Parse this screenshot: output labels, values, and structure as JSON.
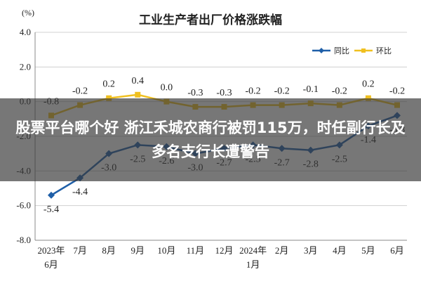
{
  "chart_data": {
    "type": "line",
    "title": "工业生产者出厂价格涨跌幅",
    "unit_label": "(%)",
    "categories": [
      [
        "2023年",
        "6月"
      ],
      [
        "7月"
      ],
      [
        "8月"
      ],
      [
        "9月"
      ],
      [
        "10月"
      ],
      [
        "11月"
      ],
      [
        "12月"
      ],
      [
        "2024年",
        "1月"
      ],
      [
        "2月"
      ],
      [
        "3月"
      ],
      [
        "4月"
      ],
      [
        "5月"
      ],
      [
        "6月"
      ]
    ],
    "y_ticks": [
      "4.0",
      "2.0",
      "0.0",
      "-2.0",
      "-4.0",
      "-6.0",
      "-8.0"
    ],
    "ylim": [
      -8,
      4
    ],
    "grid": true,
    "legend_position": "top-right",
    "series": [
      {
        "name": "同比",
        "color": "#1f5fa8",
        "values": [
          -5.4,
          -4.4,
          -3.0,
          -2.5,
          -2.6,
          -3.0,
          -2.7,
          -2.5,
          -2.7,
          -2.8,
          -2.5,
          -1.4,
          -0.8
        ],
        "labels": [
          "-5.4",
          "-4.4",
          "-3.0",
          "-2.5",
          "-2.6",
          "-3.0",
          "-2.7",
          "-2.5",
          "-2.7",
          "-2.8",
          "-2.5",
          "-1.4",
          "-0.8"
        ]
      },
      {
        "name": "环比",
        "color": "#f0c020",
        "values": [
          -0.8,
          -0.2,
          0.2,
          0.4,
          0.0,
          -0.3,
          -0.3,
          -0.2,
          -0.2,
          -0.1,
          -0.2,
          0.2,
          -0.2
        ],
        "labels": [
          "-0.8",
          "-0.2",
          "0.2",
          "0.4",
          "0.0",
          "-0.3",
          "-0.3",
          "-0.2",
          "-0.2",
          "-0.1",
          "-0.2",
          "0.2",
          "-0.2"
        ]
      }
    ]
  },
  "overlay": {
    "text": "股票平台哪个好 浙江禾城农商行被罚115万，时任副行长及多名支行长遭警告"
  }
}
